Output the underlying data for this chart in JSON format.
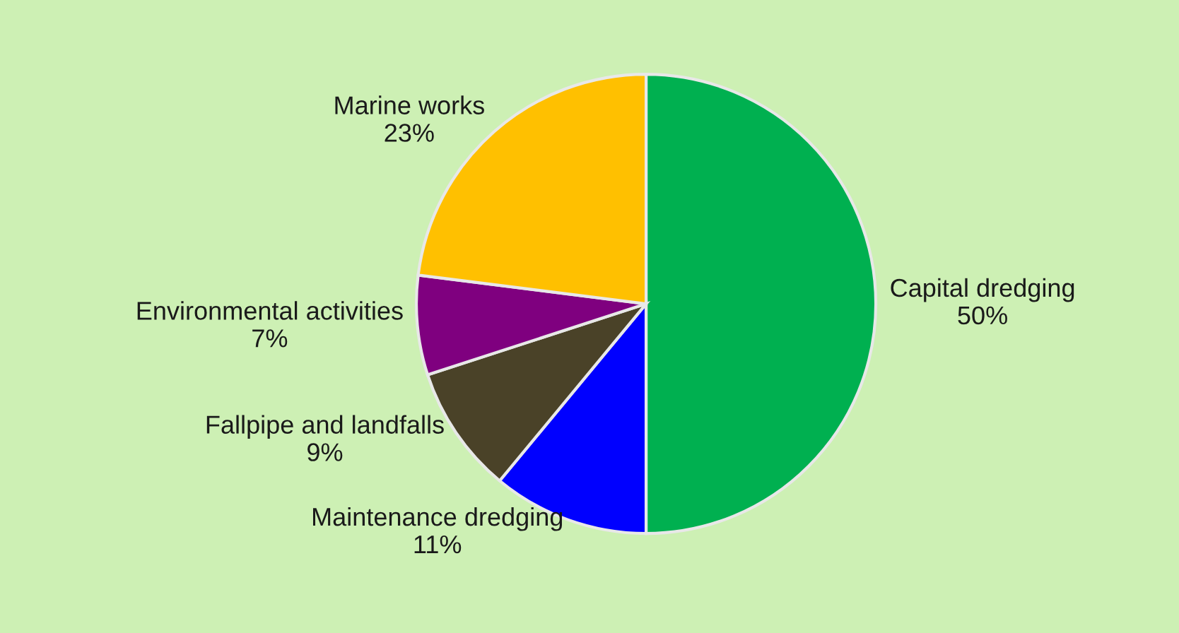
{
  "chart_data": {
    "type": "pie",
    "categories": [
      "Capital dredging",
      "Maintenance dredging",
      "Fallpipe and landfalls",
      "Environmental activities",
      "Marine works"
    ],
    "values": [
      50,
      11,
      9,
      7,
      23
    ],
    "colors": [
      "#00b050",
      "#0000ff",
      "#4a4228",
      "#7f007f",
      "#ffc000"
    ],
    "value_labels": [
      "50%",
      "11%",
      "9%",
      "7%",
      "23%"
    ]
  }
}
